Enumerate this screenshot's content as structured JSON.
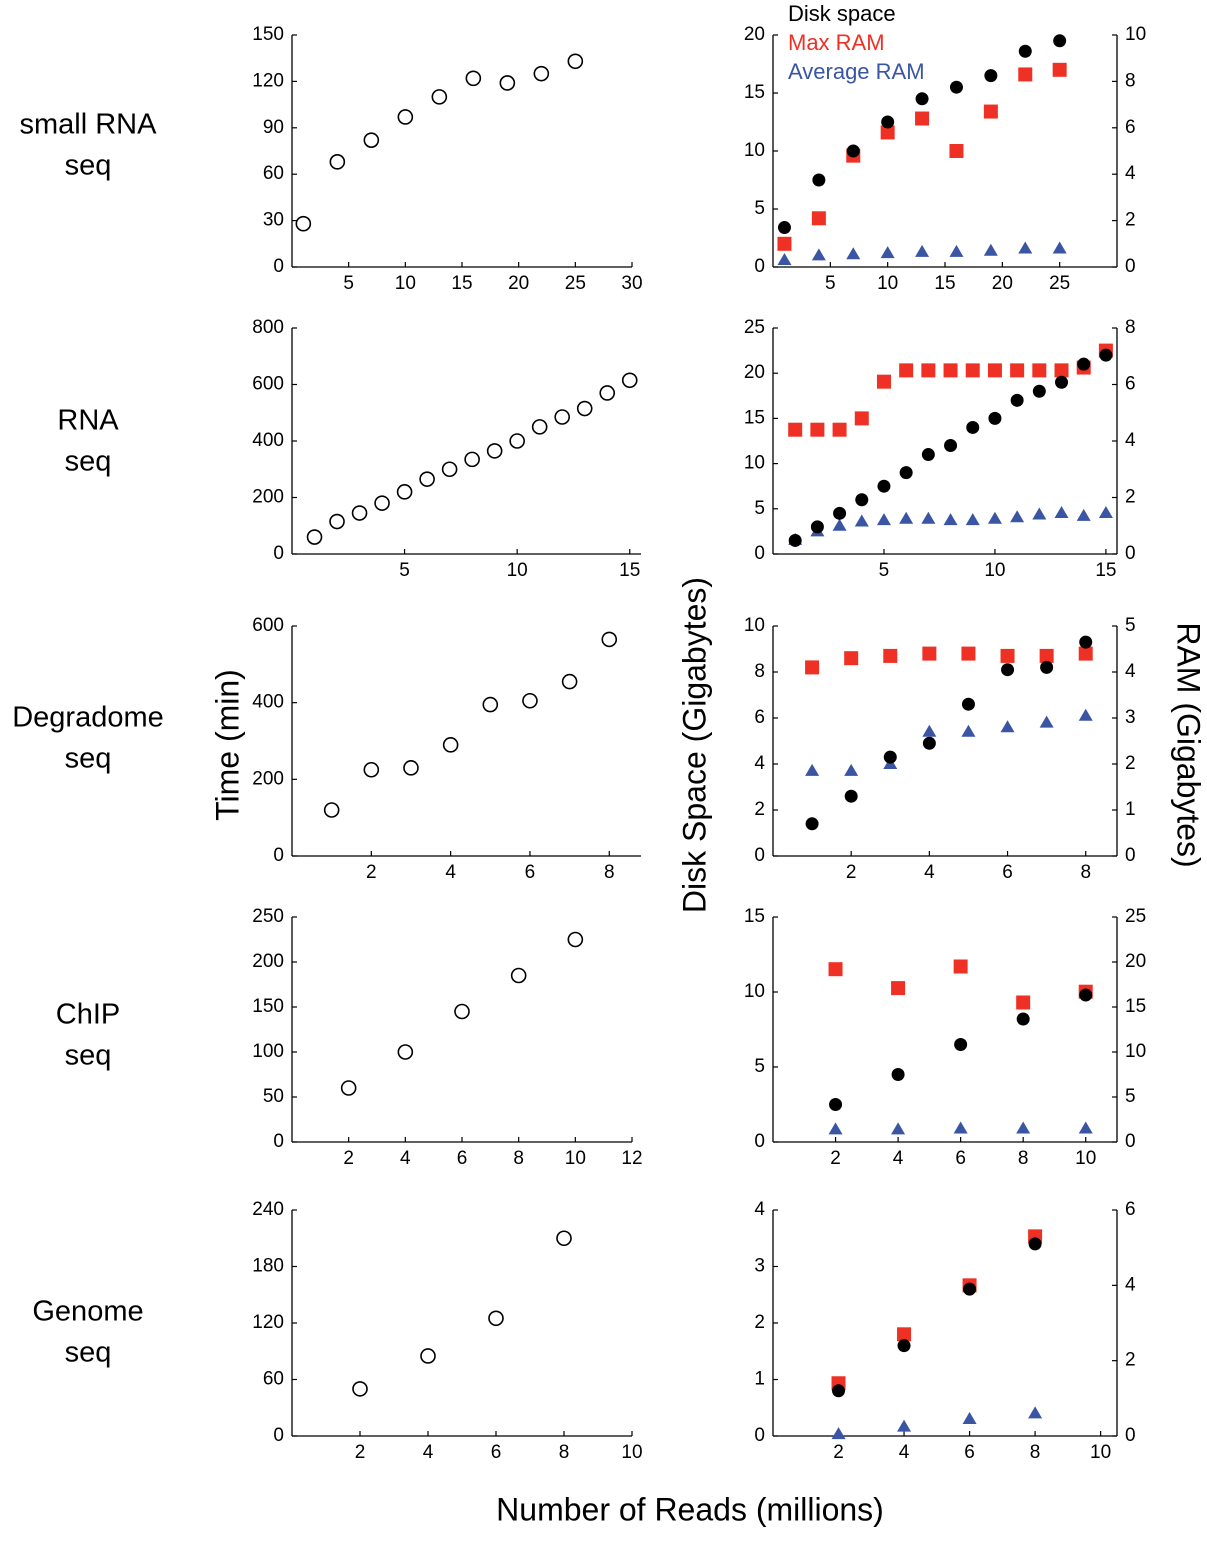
{
  "labels": {
    "time_axis": "Time (min)",
    "disk_axis": "Disk Space (Gigabytes)",
    "ram_axis": "RAM (Gigabytes)",
    "x_axis": "Number of Reads (millions)"
  },
  "legend": [
    {
      "label": "Disk space",
      "color": "#000000",
      "marker": "circle"
    },
    {
      "label": "Max RAM",
      "color": "#ee3124",
      "marker": "square"
    },
    {
      "label": "Average RAM",
      "color": "#3a55a4",
      "marker": "triangle"
    }
  ],
  "chart_data": [
    {
      "row_label": [
        "small RNA",
        "seq"
      ],
      "type": "scatter",
      "time": {
        "xlim": [
          0,
          30
        ],
        "xticks": [
          5,
          10,
          15,
          20,
          25,
          30
        ],
        "ylim": [
          0,
          150
        ],
        "yticks": [
          0,
          30,
          60,
          90,
          120,
          150
        ],
        "x": [
          1,
          4,
          7,
          10,
          13,
          16,
          19,
          22,
          25
        ],
        "y": [
          28,
          68,
          82,
          97,
          110,
          122,
          119,
          125,
          133
        ]
      },
      "resources": {
        "xlim": [
          0,
          30
        ],
        "xticks": [
          5,
          10,
          15,
          20,
          25
        ],
        "ylim_left": [
          0,
          20
        ],
        "yticks_left": [
          0,
          5,
          10,
          15,
          20
        ],
        "ylim_right": [
          0,
          10
        ],
        "yticks_right": [
          0,
          2,
          4,
          6,
          8,
          10
        ],
        "x": [
          1,
          4,
          7,
          10,
          13,
          16,
          19,
          22,
          25
        ],
        "disk_space": [
          3.4,
          7.5,
          10,
          12.5,
          14.5,
          15.5,
          16.5,
          18.6,
          19.5
        ],
        "max_ram": [
          1,
          2.1,
          4.8,
          5.8,
          6.4,
          5.0,
          6.7,
          8.3,
          8.5
        ],
        "average_ram": [
          0.3,
          0.5,
          0.55,
          0.6,
          0.65,
          0.65,
          0.7,
          0.8,
          0.8
        ]
      }
    },
    {
      "row_label": [
        "RNA",
        "seq"
      ],
      "type": "scatter",
      "time": {
        "xlim": [
          0,
          15.5
        ],
        "xticks": [
          5,
          10,
          15
        ],
        "ylim": [
          0,
          800
        ],
        "yticks": [
          0,
          200,
          400,
          600,
          800
        ],
        "x": [
          1,
          2,
          3,
          4,
          5,
          6,
          7,
          8,
          9,
          10,
          11,
          12,
          13,
          14,
          15
        ],
        "y": [
          60,
          115,
          145,
          180,
          220,
          265,
          300,
          335,
          365,
          400,
          450,
          485,
          515,
          570,
          615
        ]
      },
      "resources": {
        "xlim": [
          0,
          15.5
        ],
        "xticks": [
          5,
          10,
          15
        ],
        "ylim_left": [
          0,
          25
        ],
        "yticks_left": [
          0,
          5,
          10,
          15,
          20,
          25
        ],
        "ylim_right": [
          0,
          8
        ],
        "yticks_right": [
          0,
          2,
          4,
          6,
          8
        ],
        "x": [
          1,
          2,
          3,
          4,
          5,
          6,
          7,
          8,
          9,
          10,
          11,
          12,
          13,
          14,
          15
        ],
        "disk_space": [
          1.5,
          3,
          4.5,
          6,
          7.5,
          9,
          11,
          12,
          14,
          15,
          17,
          18,
          19,
          21,
          22
        ],
        "max_ram": [
          4.4,
          4.4,
          4.4,
          4.8,
          6.1,
          6.5,
          6.5,
          6.5,
          6.5,
          6.5,
          6.5,
          6.5,
          6.5,
          6.6,
          7.2
        ],
        "average_ram": [
          0.5,
          0.8,
          1.0,
          1.15,
          1.2,
          1.25,
          1.25,
          1.2,
          1.2,
          1.25,
          1.3,
          1.4,
          1.45,
          1.35,
          1.45
        ]
      }
    },
    {
      "row_label": [
        "Degradome",
        "seq"
      ],
      "type": "scatter",
      "time": {
        "xlim": [
          0,
          8.8
        ],
        "xticks": [
          2,
          4,
          6,
          8
        ],
        "ylim": [
          0,
          600
        ],
        "yticks": [
          0,
          200,
          400,
          600
        ],
        "x": [
          1,
          2,
          3,
          4,
          5,
          6,
          7,
          8
        ],
        "y": [
          120,
          225,
          230,
          290,
          395,
          405,
          455,
          565
        ]
      },
      "resources": {
        "xlim": [
          0,
          8.8
        ],
        "xticks": [
          2,
          4,
          6,
          8
        ],
        "ylim_left": [
          0,
          10
        ],
        "yticks_left": [
          0,
          2,
          4,
          6,
          8,
          10
        ],
        "ylim_right": [
          0,
          5
        ],
        "yticks_right": [
          0,
          1,
          2,
          3,
          4,
          5
        ],
        "x": [
          1,
          2,
          3,
          4,
          5,
          6,
          7,
          8
        ],
        "disk_space": [
          1.4,
          2.6,
          4.3,
          4.9,
          6.6,
          8.1,
          8.2,
          9.3
        ],
        "max_ram": [
          4.1,
          4.3,
          4.35,
          4.4,
          4.4,
          4.35,
          4.35,
          4.4
        ],
        "average_ram": [
          1.85,
          1.85,
          2.0,
          2.7,
          2.7,
          2.8,
          2.9,
          3.05
        ]
      }
    },
    {
      "row_label": [
        "ChIP",
        "seq"
      ],
      "type": "scatter",
      "time": {
        "xlim": [
          0,
          12
        ],
        "xticks": [
          2,
          4,
          6,
          8,
          10,
          12
        ],
        "ylim": [
          0,
          250
        ],
        "yticks": [
          0,
          50,
          100,
          150,
          200,
          250
        ],
        "x": [
          2,
          4,
          6,
          8,
          10
        ],
        "y": [
          60,
          100,
          145,
          185,
          225
        ]
      },
      "resources": {
        "xlim": [
          0,
          11
        ],
        "xticks": [
          2,
          4,
          6,
          8,
          10
        ],
        "ylim_left": [
          0,
          15
        ],
        "yticks_left": [
          0,
          5,
          10,
          15
        ],
        "ylim_right": [
          0,
          25
        ],
        "yticks_right": [
          0,
          5,
          10,
          15,
          20,
          25
        ],
        "x": [
          2,
          4,
          6,
          8,
          10
        ],
        "disk_space": [
          2.5,
          4.5,
          6.5,
          8.2,
          9.8
        ],
        "max_ram": [
          19.2,
          17.1,
          19.5,
          15.5,
          16.7
        ],
        "average_ram": [
          1.4,
          1.4,
          1.5,
          1.5,
          1.5
        ]
      }
    },
    {
      "row_label": [
        "Genome",
        "seq"
      ],
      "type": "scatter",
      "time": {
        "xlim": [
          0,
          10
        ],
        "xticks": [
          2,
          4,
          6,
          8,
          10
        ],
        "ylim": [
          0,
          240
        ],
        "yticks": [
          0,
          60,
          120,
          180,
          240
        ],
        "x": [
          2,
          4,
          6,
          8
        ],
        "y": [
          50,
          85,
          125,
          210
        ]
      },
      "resources": {
        "xlim": [
          0,
          10.5
        ],
        "xticks": [
          2,
          4,
          6,
          8,
          10
        ],
        "ylim_left": [
          0,
          4
        ],
        "yticks_left": [
          0,
          1,
          2,
          3,
          4
        ],
        "ylim_right": [
          0,
          6
        ],
        "yticks_right": [
          0,
          2,
          4,
          6
        ],
        "x": [
          2,
          4,
          6,
          8
        ],
        "disk_space": [
          0.8,
          1.6,
          2.6,
          3.4
        ],
        "max_ram": [
          1.4,
          2.7,
          4.0,
          5.3
        ],
        "average_ram": [
          0.05,
          0.25,
          0.45,
          0.6
        ]
      }
    }
  ]
}
